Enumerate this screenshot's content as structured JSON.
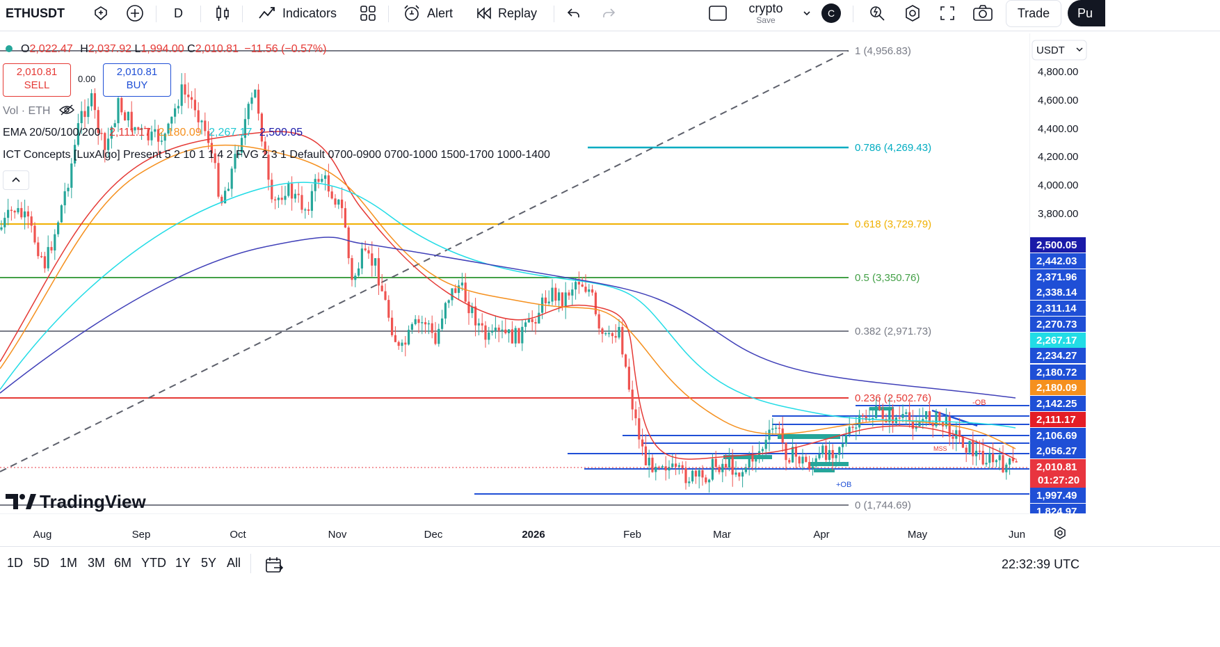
{
  "toolbar": {
    "symbol": "ETHUSDT",
    "interval": "D",
    "indicators_label": "Indicators",
    "alert_label": "Alert",
    "replay_label": "Replay",
    "layout_name": "crypto",
    "layout_save": "Save",
    "avatar_letter": "C",
    "trade_label": "Trade",
    "publish_label": "Pu"
  },
  "legend": {
    "ohlc": [
      {
        "k": "O",
        "v": "2,022.47"
      },
      {
        "k": "H",
        "v": "2,037.92"
      },
      {
        "k": "L",
        "v": "1,994.00"
      },
      {
        "k": "C",
        "v": "2,010.81"
      }
    ],
    "change": "−11.56 (−0.57%)",
    "sell_price": "2,010.81",
    "sell_label": "SELL",
    "buy_price": "2,010.81",
    "buy_label": "BUY",
    "spread": "0.00",
    "vol": "Vol · ETH",
    "ema_name": "EMA 20/50/100/200",
    "ema_values": [
      "2,111.17",
      "2,180.09",
      "2,267.17",
      "2,500.05"
    ],
    "ict": "ICT Concepts [LuxAlgo] Present 5 2 10 1 1 4 2 FVG 2 3 1 Default 0700-0900 0700-1000 1500-1700 1000-1400"
  },
  "price_axis": {
    "currency": "USDT",
    "ticks": [
      "4,800.00",
      "4,600.00",
      "4,400.00",
      "4,200.00",
      "4,000.00",
      "3,800.00"
    ],
    "tags": [
      {
        "v": "2,500.05",
        "bg": "#1a1aa8"
      },
      {
        "v": "2,442.03",
        "bg": "#1f4fd6"
      },
      {
        "v": "2,371.96",
        "bg": "#1f4fd6"
      },
      {
        "v": "2,338.14",
        "bg": "#1f4fd6"
      },
      {
        "v": "2,311.14",
        "bg": "#1f4fd6"
      },
      {
        "v": "2,270.73",
        "bg": "#1f4fd6"
      },
      {
        "v": "2,267.17",
        "bg": "#22dce6"
      },
      {
        "v": "2,234.27",
        "bg": "#1f4fd6"
      },
      {
        "v": "2,180.72",
        "bg": "#1f4fd6"
      },
      {
        "v": "2,180.09",
        "bg": "#f5901e"
      },
      {
        "v": "2,142.25",
        "bg": "#1f4fd6"
      },
      {
        "v": "2,111.17",
        "bg": "#e41e26"
      },
      {
        "v": "2,106.69",
        "bg": "#1f4fd6"
      },
      {
        "v": "2,056.27",
        "bg": "#1f4fd6"
      },
      {
        "v": "2,010.81",
        "bg": "#e8353f"
      },
      {
        "v": "1,997.49",
        "bg": "#1f4fd6"
      },
      {
        "v": "1,824.97",
        "bg": "#1f4fd6"
      }
    ],
    "countdown": "01:27:20"
  },
  "fib": [
    {
      "label": "1 (4,956.83)",
      "color": "#787b86"
    },
    {
      "label": "0.786 (4,269.43)",
      "color": "#00acc1"
    },
    {
      "label": "0.618 (3,729.79)",
      "color": "#f0b000"
    },
    {
      "label": "0.5 (3,350.76)",
      "color": "#43a047"
    },
    {
      "label": "0.382 (2,971.73)",
      "color": "#787b86"
    },
    {
      "label": "0.236 (2,502.76)",
      "color": "#e53935"
    },
    {
      "label": "0 (1,744.69)",
      "color": "#787b86"
    }
  ],
  "chart_marks": {
    "ob_top": "-OB",
    "ob_bottom": "+OB",
    "mss": "MSS",
    "watermark": "TradingView"
  },
  "time_axis": [
    "Aug",
    "Sep",
    "Oct",
    "Nov",
    "Dec",
    "2026",
    "Feb",
    "Mar",
    "Apr",
    "May",
    "Jun"
  ],
  "bottom_bar": {
    "ranges": [
      "1D",
      "5D",
      "1M",
      "3M",
      "6M",
      "YTD",
      "1Y",
      "5Y",
      "All"
    ],
    "clock": "22:32:39 UTC"
  }
}
